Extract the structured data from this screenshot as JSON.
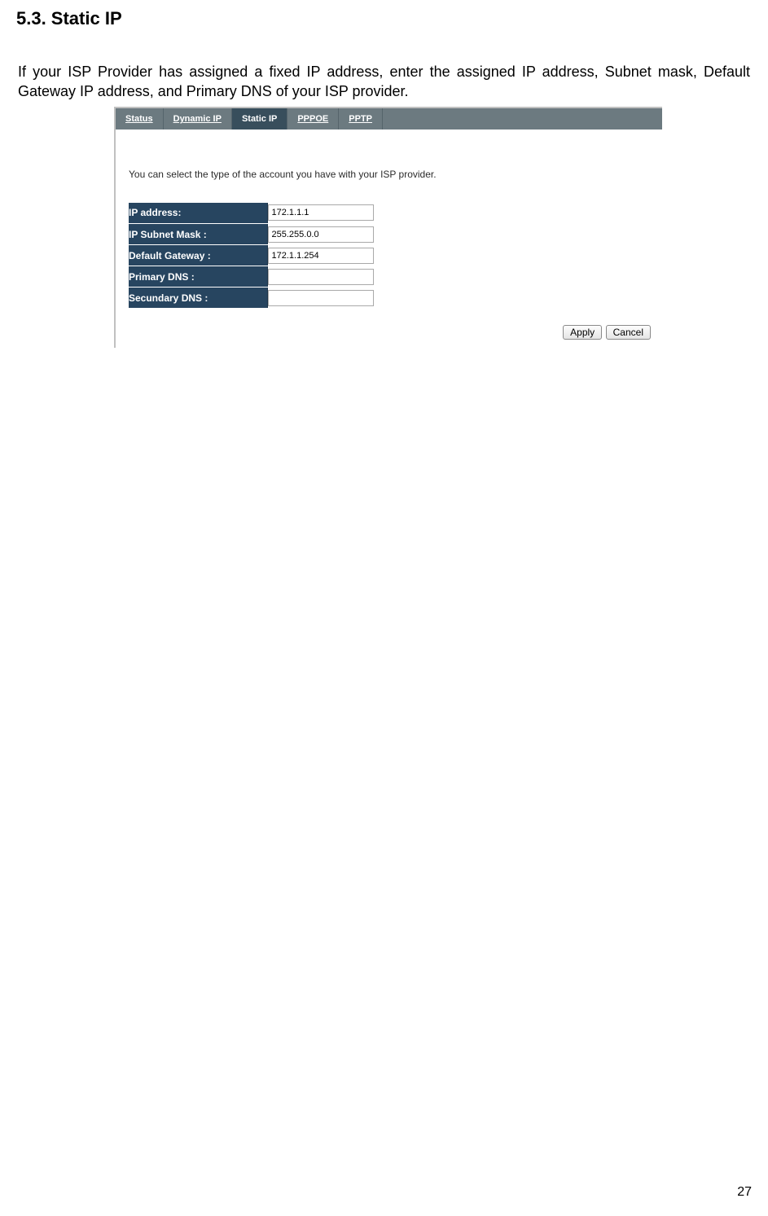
{
  "heading": "5.3. Static IP",
  "body_text": "If your ISP Provider has assigned a fixed IP address, enter the assigned IP address, Subnet mask, Default Gateway IP address, and Primary DNS of your ISP provider.",
  "tabs": {
    "status": "Status",
    "dynamic_ip": "Dynamic IP",
    "static_ip": "Static IP",
    "pppoe": "PPPOE",
    "pptp": "PPTP"
  },
  "intro": "You can select the type of the account you have with your ISP provider.",
  "form": {
    "ip_address": {
      "label": "IP address:",
      "value": "172.1.1.1"
    },
    "subnet": {
      "label": "IP Subnet Mask :",
      "value": "255.255.0.0"
    },
    "gateway": {
      "label": "Default Gateway :",
      "value": "172.1.1.254"
    },
    "primary_dns": {
      "label": "Primary DNS :",
      "value": ""
    },
    "secondary_dns": {
      "label": "Secundary DNS :",
      "value": ""
    }
  },
  "buttons": {
    "apply": "Apply",
    "cancel": "Cancel"
  },
  "page_number": "27",
  "colors": {
    "tabbar_bg": "#6c7a80",
    "tab_active_bg": "#384e5c",
    "label_bg": "#274560",
    "label_text": "#ffffff"
  }
}
